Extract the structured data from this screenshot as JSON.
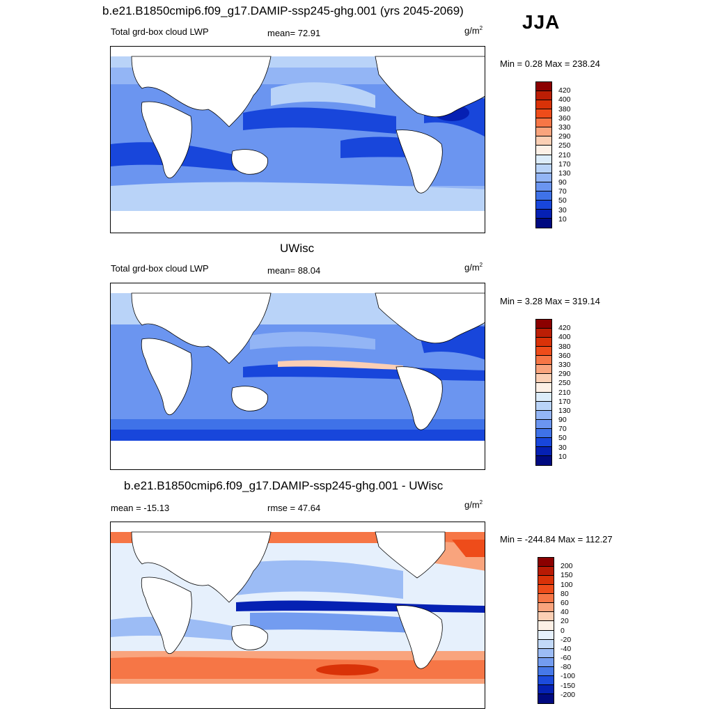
{
  "season": "JJA",
  "panels": [
    {
      "title": "b.e21.B1850cmip6.f09_g17.DAMIP-ssp245-ghg.001 (yrs 2045-2069)",
      "left_label": "Total grd-box cloud LWP",
      "center_label": "mean=  72.91",
      "units": "g/m",
      "units_sup": "2",
      "minmax": "Min =   0.28 Max = 238.24",
      "colorbar": {
        "labels": [
          "420",
          "400",
          "380",
          "360",
          "330",
          "290",
          "250",
          "210",
          "170",
          "130",
          "90",
          "70",
          "50",
          "30",
          "10"
        ],
        "colors": [
          "#8b0000",
          "#bb1e05",
          "#d93208",
          "#ee4c1a",
          "#f67646",
          "#f9a47d",
          "#fbcfb4",
          "#fdf0e6",
          "#dcecfa",
          "#b9d3f8",
          "#93b5f5",
          "#6b95f0",
          "#3f72e8",
          "#1846db",
          "#0520b3",
          "#000a80"
        ]
      }
    },
    {
      "title": "UWisc",
      "left_label": "Total grd-box cloud LWP",
      "center_label": "mean=  88.04",
      "units": "g/m",
      "units_sup": "2",
      "minmax": "Min =   3.28 Max = 319.14",
      "colorbar": {
        "labels": [
          "420",
          "400",
          "380",
          "360",
          "330",
          "290",
          "250",
          "210",
          "170",
          "130",
          "90",
          "70",
          "50",
          "30",
          "10"
        ],
        "colors": [
          "#8b0000",
          "#bb1e05",
          "#d93208",
          "#ee4c1a",
          "#f67646",
          "#f9a47d",
          "#fbcfb4",
          "#fdf0e6",
          "#dcecfa",
          "#b9d3f8",
          "#93b5f5",
          "#6b95f0",
          "#3f72e8",
          "#1846db",
          "#0520b3",
          "#000a80"
        ]
      }
    },
    {
      "title": "b.e21.B1850cmip6.f09_g17.DAMIP-ssp245-ghg.001 - UWisc",
      "left_label": "mean = -15.13",
      "center_label": "rmse =  47.64",
      "units": "g/m",
      "units_sup": "2",
      "minmax": "Min = -244.84 Max = 112.27",
      "colorbar": {
        "labels": [
          "200",
          "150",
          "100",
          "80",
          "60",
          "40",
          "20",
          "0",
          "-20",
          "-40",
          "-60",
          "-80",
          "-100",
          "-150",
          "-200"
        ],
        "colors": [
          "#8b0000",
          "#b81a04",
          "#d93208",
          "#ee4c1a",
          "#f67646",
          "#f9a47d",
          "#fbcfb4",
          "#fdf0e6",
          "#e6f0fc",
          "#c2d9f8",
          "#9cbcf5",
          "#739cf0",
          "#4678e8",
          "#1c4bdc",
          "#0521b3",
          "#000a80"
        ]
      }
    }
  ]
}
